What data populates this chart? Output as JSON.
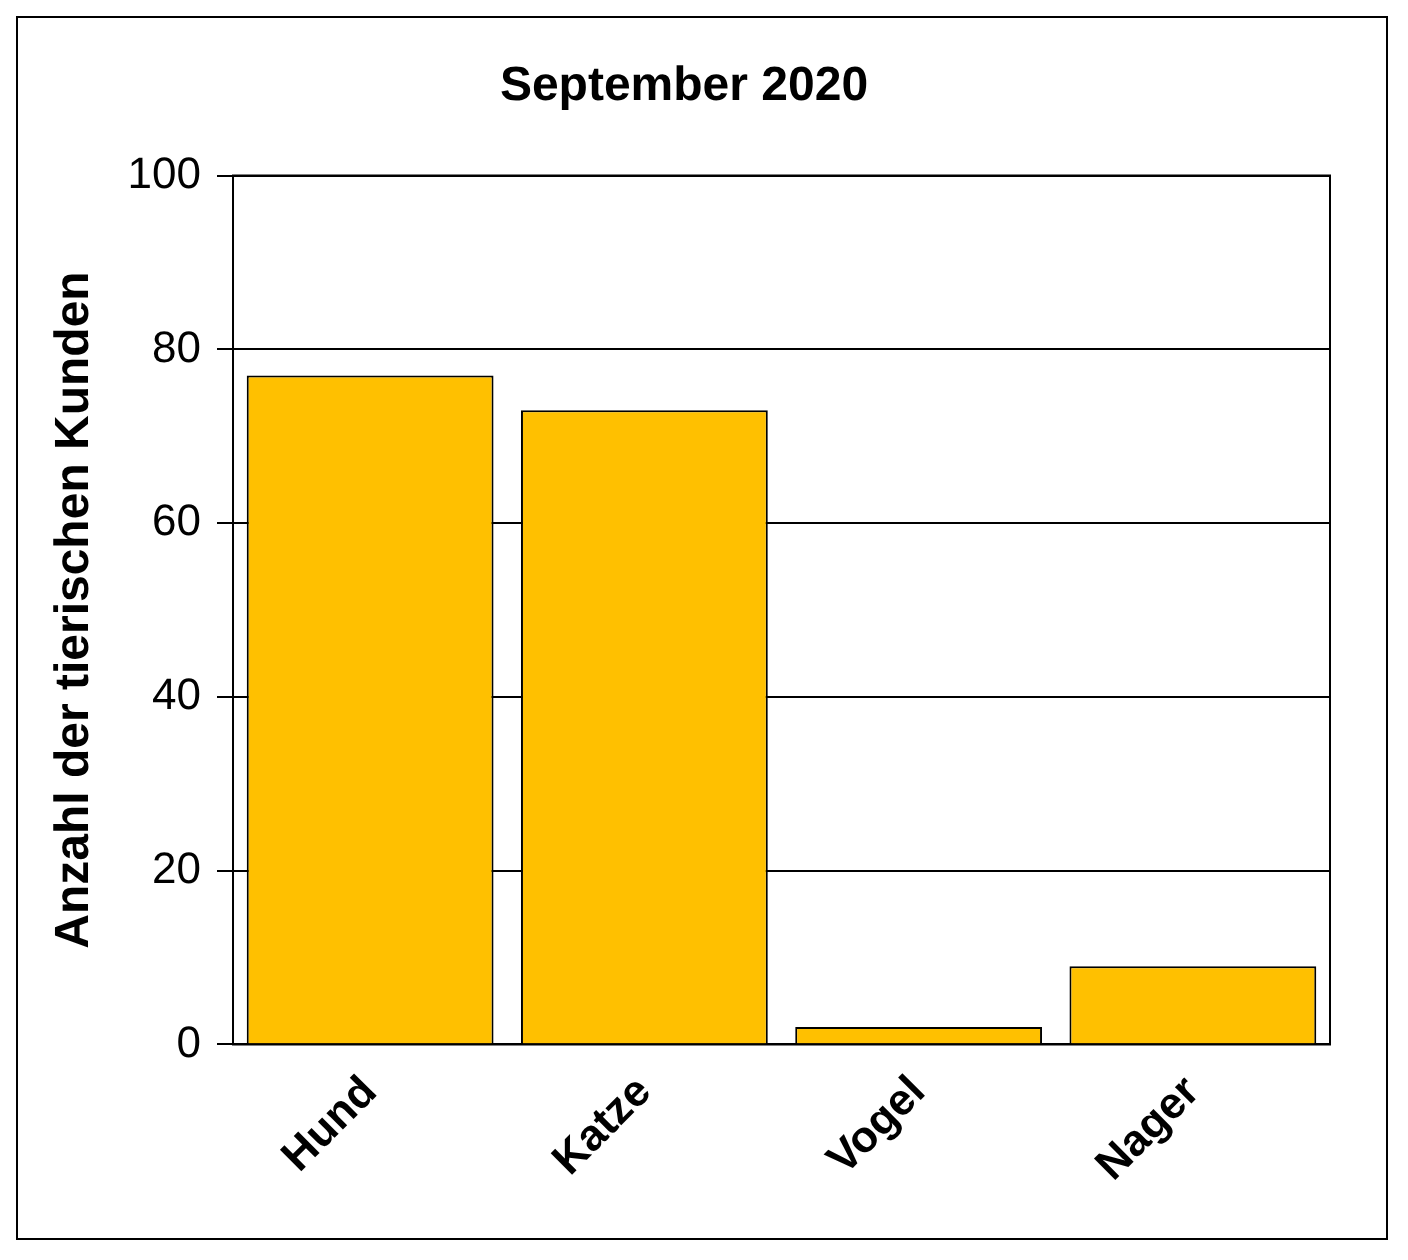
{
  "chart_data": {
    "type": "bar",
    "title": "September 2020",
    "ylabel": "Anzahl der tierischen Kunden",
    "categories": [
      "Hund",
      "Katze",
      "Vogel",
      "Nager"
    ],
    "values": [
      77,
      73,
      2,
      9
    ],
    "color": "#ffc000",
    "ylim": [
      0,
      100
    ],
    "yticks": [
      0,
      20,
      40,
      60,
      80,
      100
    ],
    "grid": "y"
  }
}
